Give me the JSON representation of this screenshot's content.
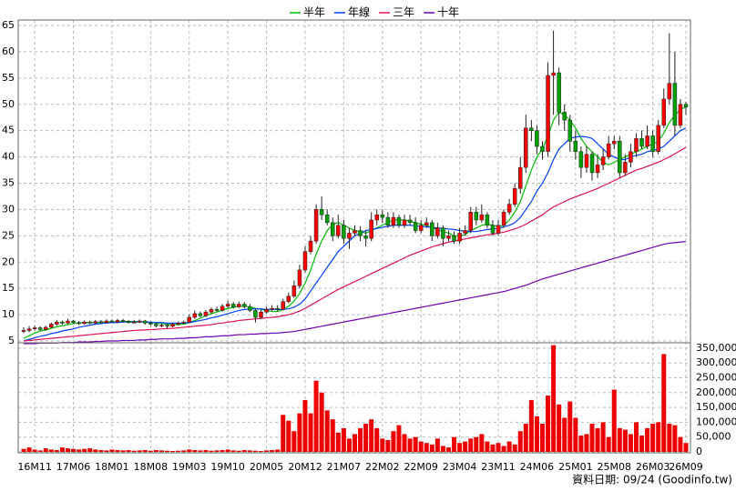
{
  "chart_data": {
    "type": "candlestick",
    "categories": [
      null,
      null,
      "16M11",
      null,
      null,
      null,
      null,
      null,
      null,
      "17M06",
      null,
      null,
      null,
      null,
      null,
      null,
      "18M01",
      null,
      null,
      null,
      null,
      null,
      null,
      "18M08",
      null,
      null,
      null,
      null,
      null,
      null,
      "19M03",
      null,
      null,
      null,
      null,
      null,
      null,
      "19M10",
      null,
      null,
      null,
      null,
      null,
      null,
      "20M05",
      null,
      null,
      null,
      null,
      null,
      null,
      "20M12",
      null,
      null,
      null,
      null,
      null,
      null,
      "21M07",
      null,
      null,
      null,
      null,
      null,
      null,
      "22M02",
      null,
      null,
      null,
      null,
      null,
      null,
      "22M09",
      null,
      null,
      null,
      null,
      null,
      null,
      "23M04",
      null,
      null,
      null,
      null,
      null,
      null,
      "23M11",
      null,
      null,
      null,
      null,
      null,
      null,
      "24M06",
      null,
      null,
      null,
      null,
      null,
      null,
      "25M01",
      null,
      null,
      null,
      null,
      null,
      null,
      "25M08",
      null,
      null,
      null,
      null,
      null,
      null,
      "26M03",
      null,
      null,
      null,
      null,
      null,
      "26M09"
    ],
    "open": [
      6.8,
      7.0,
      7.3,
      7.5,
      7.2,
      7.6,
      8.2,
      8.6,
      8.4,
      8.8,
      8.5,
      8.3,
      8.6,
      8.4,
      8.7,
      8.5,
      8.8,
      8.6,
      8.9,
      8.7,
      8.5,
      8.6,
      8.8,
      8.4,
      8.2,
      7.9,
      8.0,
      7.8,
      8.2,
      8.4,
      8.6,
      9.5,
      10.2,
      9.8,
      10.5,
      11.0,
      10.8,
      11.6,
      12.0,
      11.5,
      12.0,
      11.5,
      10.8,
      9.5,
      10.5,
      11.0,
      11.2,
      11.0,
      12.5,
      13.5,
      15.5,
      18.5,
      22.0,
      24.0,
      30.0,
      29.0,
      27.5,
      25.0,
      27.0,
      24.5,
      25.5,
      26.0,
      25.0,
      24.5,
      28.0,
      29.0,
      28.5,
      27.0,
      28.5,
      27.0,
      28.0,
      27.5,
      26.0,
      27.0,
      27.5,
      25.0,
      26.5,
      24.5,
      25.0,
      24.0,
      25.5,
      26.0,
      29.5,
      28.0,
      29.0,
      27.0,
      25.5,
      27.0,
      29.5,
      31.0,
      34.0,
      38.0,
      45.5,
      45.0,
      42.0,
      41.0,
      55.5,
      56.0,
      48.5,
      47.0,
      43.0,
      41.0,
      38.0,
      40.5,
      37.0,
      38.5,
      40.0,
      42.5,
      43.0,
      37.0,
      39.0,
      41.0,
      43.5,
      42.0,
      44.0,
      41.0,
      46.0,
      51.0,
      54.0,
      46.0,
      50.0
    ],
    "high": [
      7.6,
      7.8,
      7.9,
      7.8,
      7.9,
      8.5,
      9.0,
      8.9,
      9.2,
      9.0,
      8.8,
      8.9,
      8.9,
      9.0,
      9.0,
      9.1,
      9.1,
      9.2,
      9.2,
      9.0,
      9.0,
      9.1,
      9.0,
      8.7,
      8.5,
      8.3,
      8.3,
      8.5,
      8.7,
      8.9,
      10.0,
      10.8,
      10.6,
      10.9,
      11.4,
      11.5,
      12.0,
      12.6,
      12.4,
      12.5,
      12.4,
      12.0,
      11.2,
      10.9,
      11.5,
      11.8,
      11.8,
      13.0,
      14.2,
      16.5,
      19.5,
      23.0,
      25.0,
      31.0,
      32.5,
      30.0,
      28.5,
      29.0,
      28.0,
      26.5,
      27.0,
      26.8,
      26.0,
      29.5,
      30.0,
      30.0,
      29.5,
      29.5,
      29.0,
      29.0,
      29.0,
      28.5,
      28.0,
      28.5,
      28.0,
      27.5,
      27.0,
      26.0,
      25.8,
      26.5,
      27.0,
      30.5,
      30.5,
      31.0,
      29.5,
      28.0,
      28.0,
      30.0,
      32.0,
      35.0,
      40.0,
      48.0,
      47.0,
      46.0,
      43.0,
      58.0,
      64.0,
      57.0,
      50.0,
      48.0,
      45.0,
      42.0,
      42.0,
      41.0,
      40.5,
      41.5,
      44.0,
      44.0,
      44.0,
      40.5,
      42.5,
      44.5,
      45.0,
      46.0,
      45.0,
      47.0,
      53.0,
      63.5,
      60.0,
      51.0,
      50.5
    ],
    "low": [
      6.5,
      6.7,
      7.0,
      6.9,
      7.0,
      7.4,
      7.9,
      8.1,
      8.2,
      8.2,
      8.0,
      8.1,
      8.2,
      8.2,
      8.3,
      8.3,
      8.4,
      8.4,
      8.5,
      8.3,
      8.3,
      8.4,
      8.1,
      7.9,
      7.6,
      7.6,
      7.4,
      7.6,
      8.0,
      8.2,
      8.4,
      9.2,
      9.5,
      9.6,
      10.2,
      10.5,
      10.6,
      11.3,
      11.2,
      11.3,
      11.2,
      10.5,
      8.5,
      9.2,
      10.2,
      10.6,
      10.6,
      10.8,
      12.2,
      13.2,
      15.0,
      18.0,
      21.5,
      23.5,
      28.0,
      27.0,
      24.0,
      24.5,
      23.5,
      22.5,
      25.0,
      24.0,
      23.0,
      24.0,
      27.0,
      27.5,
      26.5,
      26.5,
      26.5,
      26.5,
      27.0,
      25.5,
      25.5,
      26.5,
      24.0,
      24.5,
      23.0,
      24.0,
      23.5,
      23.5,
      25.0,
      25.5,
      27.0,
      27.5,
      26.5,
      25.0,
      25.0,
      26.5,
      29.0,
      30.5,
      33.0,
      37.0,
      43.0,
      40.5,
      39.5,
      40.0,
      48.0,
      46.0,
      45.0,
      41.0,
      39.5,
      36.0,
      37.0,
      35.5,
      36.0,
      37.5,
      39.5,
      41.5,
      36.0,
      36.5,
      38.0,
      40.0,
      41.5,
      41.5,
      40.0,
      40.5,
      45.5,
      50.0,
      44.0,
      45.5,
      48.0
    ],
    "close": [
      7.0,
      7.3,
      7.5,
      7.2,
      7.6,
      8.2,
      8.6,
      8.4,
      8.8,
      8.5,
      8.3,
      8.6,
      8.4,
      8.7,
      8.5,
      8.8,
      8.6,
      8.9,
      8.7,
      8.5,
      8.6,
      8.8,
      8.4,
      8.2,
      7.9,
      8.0,
      7.8,
      8.2,
      8.4,
      8.6,
      9.5,
      10.2,
      9.8,
      10.5,
      11.0,
      10.8,
      11.6,
      12.0,
      11.5,
      12.0,
      11.5,
      10.8,
      9.5,
      10.5,
      11.0,
      11.2,
      11.0,
      12.5,
      13.5,
      15.5,
      18.5,
      22.0,
      24.0,
      30.0,
      29.0,
      27.5,
      25.0,
      27.0,
      24.5,
      25.5,
      26.0,
      25.0,
      24.5,
      28.0,
      29.0,
      28.5,
      27.0,
      28.5,
      27.0,
      28.0,
      27.5,
      26.0,
      27.0,
      27.5,
      25.0,
      26.5,
      24.5,
      25.0,
      24.0,
      25.5,
      26.0,
      29.5,
      28.0,
      29.0,
      27.0,
      25.5,
      27.0,
      29.5,
      31.0,
      34.0,
      38.0,
      45.5,
      45.0,
      42.0,
      41.0,
      55.5,
      56.0,
      48.5,
      47.0,
      43.0,
      41.0,
      38.0,
      40.5,
      37.0,
      38.5,
      40.0,
      42.5,
      43.0,
      37.0,
      39.0,
      41.0,
      43.5,
      42.0,
      44.0,
      41.0,
      46.0,
      51.0,
      54.0,
      46.0,
      50.0,
      49.5
    ],
    "up_color": "#ff0000",
    "down_color": "#00a000",
    "ylim": [
      5,
      65
    ],
    "yticks": [
      5,
      10,
      15,
      20,
      25,
      30,
      35,
      40,
      45,
      50,
      55,
      60,
      65
    ],
    "grid": true,
    "series": [
      {
        "name": "半年",
        "color": "#00c000",
        "values": [
          5.5,
          6.0,
          6.5,
          6.9,
          7.1,
          7.4,
          7.7,
          7.9,
          8.1,
          8.3,
          8.4,
          8.5,
          8.5,
          8.5,
          8.5,
          8.6,
          8.6,
          8.6,
          8.7,
          8.7,
          8.7,
          8.7,
          8.6,
          8.5,
          8.4,
          8.3,
          8.2,
          8.1,
          8.1,
          8.2,
          8.5,
          8.9,
          9.3,
          9.8,
          10.2,
          10.5,
          10.9,
          11.2,
          11.4,
          11.6,
          11.6,
          11.5,
          11.2,
          11.0,
          10.8,
          10.6,
          10.6,
          11.0,
          11.6,
          12.6,
          14.0,
          16.0,
          18.5,
          21.5,
          24.0,
          26.0,
          27.2,
          27.5,
          27.0,
          26.5,
          26.0,
          25.8,
          25.5,
          26.0,
          26.5,
          27.0,
          27.5,
          28.0,
          28.0,
          28.0,
          27.8,
          27.5,
          27.2,
          27.0,
          26.5,
          26.2,
          25.8,
          25.5,
          25.0,
          25.0,
          25.2,
          26.0,
          26.5,
          27.0,
          27.2,
          27.0,
          26.8,
          27.0,
          28.0,
          29.5,
          31.5,
          34.5,
          37.5,
          40.0,
          41.5,
          44.0,
          47.0,
          48.5,
          48.0,
          47.0,
          45.5,
          43.5,
          42.0,
          41.0,
          40.0,
          39.0,
          38.5,
          39.0,
          39.5,
          40.0,
          40.5,
          41.0,
          41.5,
          42.0,
          42.5,
          43.0,
          44.5,
          46.5,
          48.0,
          49.0,
          49.5
        ]
      },
      {
        "name": "年線",
        "color": "#0040ff",
        "values": [
          5.0,
          5.3,
          5.6,
          5.9,
          6.1,
          6.4,
          6.6,
          6.9,
          7.1,
          7.3,
          7.6,
          7.8,
          8.0,
          8.2,
          8.3,
          8.4,
          8.5,
          8.5,
          8.6,
          8.6,
          8.6,
          8.6,
          8.6,
          8.6,
          8.5,
          8.5,
          8.4,
          8.4,
          8.4,
          8.4,
          8.5,
          8.7,
          8.9,
          9.1,
          9.4,
          9.6,
          9.9,
          10.2,
          10.5,
          10.8,
          11.0,
          11.1,
          11.1,
          11.1,
          11.0,
          11.0,
          11.0,
          11.0,
          11.1,
          11.4,
          12.0,
          13.0,
          14.5,
          16.0,
          17.5,
          19.0,
          20.5,
          22.0,
          23.0,
          24.0,
          25.0,
          25.5,
          26.0,
          26.2,
          26.4,
          26.6,
          26.8,
          27.0,
          27.0,
          27.0,
          27.0,
          26.9,
          26.8,
          26.7,
          26.6,
          26.5,
          26.4,
          26.3,
          26.2,
          26.0,
          25.9,
          25.8,
          25.8,
          26.0,
          26.2,
          26.3,
          26.4,
          26.7,
          27.0,
          27.5,
          28.5,
          30.0,
          31.5,
          33.5,
          35.0,
          37.0,
          39.5,
          41.5,
          42.5,
          43.5,
          43.8,
          43.9,
          43.8,
          43.5,
          42.5,
          41.5,
          40.5,
          40.0,
          39.5,
          39.5,
          40.0,
          40.3,
          40.5,
          41.0,
          41.2,
          41.5,
          42.0,
          43.0,
          44.0,
          45.0,
          45.5
        ]
      },
      {
        "name": "三年",
        "color": "#e0105a",
        "values": [
          5.0,
          5.1,
          5.2,
          5.3,
          5.4,
          5.5,
          5.6,
          5.7,
          5.8,
          5.9,
          6.0,
          6.1,
          6.2,
          6.3,
          6.4,
          6.5,
          6.6,
          6.7,
          6.8,
          6.9,
          7.0,
          7.05,
          7.1,
          7.15,
          7.2,
          7.3,
          7.35,
          7.4,
          7.5,
          7.6,
          7.7,
          7.8,
          7.9,
          8.0,
          8.1,
          8.3,
          8.4,
          8.6,
          8.7,
          8.9,
          9.0,
          9.1,
          9.2,
          9.3,
          9.4,
          9.5,
          9.6,
          9.8,
          10.0,
          10.3,
          10.7,
          11.2,
          11.8,
          12.4,
          13.0,
          13.6,
          14.2,
          14.8,
          15.3,
          15.8,
          16.3,
          16.8,
          17.3,
          17.8,
          18.3,
          18.8,
          19.3,
          19.8,
          20.3,
          20.8,
          21.3,
          21.7,
          22.1,
          22.5,
          22.9,
          23.2,
          23.5,
          23.8,
          24.0,
          24.2,
          24.4,
          24.6,
          24.8,
          25.0,
          25.2,
          25.3,
          25.5,
          25.7,
          26.0,
          26.3,
          26.7,
          27.2,
          27.8,
          28.4,
          29.0,
          29.8,
          30.5,
          31.0,
          31.5,
          32.0,
          32.4,
          32.8,
          33.2,
          33.6,
          34.0,
          34.5,
          35.0,
          35.5,
          36.0,
          36.5,
          37.0,
          37.5,
          37.8,
          38.2,
          38.6,
          39.0,
          39.5,
          40.0,
          40.6,
          41.2,
          41.8
        ]
      },
      {
        "name": "十年",
        "color": "#7000b0",
        "values": [
          4.5,
          4.5,
          4.5,
          4.6,
          4.6,
          4.6,
          4.6,
          4.7,
          4.7,
          4.7,
          4.8,
          4.8,
          4.8,
          4.9,
          4.9,
          5.0,
          5.0,
          5.0,
          5.1,
          5.1,
          5.1,
          5.2,
          5.2,
          5.3,
          5.3,
          5.4,
          5.4,
          5.4,
          5.5,
          5.5,
          5.6,
          5.6,
          5.7,
          5.8,
          5.8,
          5.9,
          6.0,
          6.0,
          6.1,
          6.2,
          6.2,
          6.3,
          6.3,
          6.4,
          6.4,
          6.5,
          6.5,
          6.6,
          6.7,
          6.8,
          7.0,
          7.2,
          7.4,
          7.6,
          7.8,
          8.0,
          8.2,
          8.4,
          8.6,
          8.8,
          9.0,
          9.2,
          9.4,
          9.6,
          9.8,
          10.0,
          10.2,
          10.4,
          10.6,
          10.8,
          11.0,
          11.2,
          11.4,
          11.6,
          11.8,
          12.0,
          12.2,
          12.4,
          12.6,
          12.8,
          13.0,
          13.2,
          13.4,
          13.6,
          13.8,
          14.0,
          14.2,
          14.4,
          14.7,
          15.0,
          15.3,
          15.6,
          16.0,
          16.4,
          16.8,
          17.1,
          17.4,
          17.7,
          18.0,
          18.3,
          18.6,
          18.9,
          19.2,
          19.5,
          19.8,
          20.1,
          20.4,
          20.7,
          21.0,
          21.3,
          21.6,
          21.9,
          22.2,
          22.5,
          22.8,
          23.1,
          23.4,
          23.6,
          23.7,
          23.8,
          23.9
        ]
      }
    ],
    "volume": {
      "color": "#ee0000",
      "ylim": [
        0,
        365000
      ],
      "yticks": [
        0,
        {
          "value": 50000,
          "label": "50,000"
        },
        {
          "value": 100000,
          "label": "100,000"
        },
        {
          "value": 150000,
          "label": "150,000"
        },
        {
          "value": 200000,
          "label": "200,000"
        },
        {
          "value": 250000,
          "label": "250,000"
        },
        {
          "value": 300000,
          "label": "300,000"
        },
        {
          "value": 350000,
          "label": "350,000"
        }
      ],
      "values": [
        10000,
        15000,
        8000,
        5000,
        12000,
        8000,
        6000,
        15000,
        12000,
        10000,
        8000,
        10000,
        12000,
        8000,
        6000,
        5000,
        8000,
        6000,
        5000,
        6000,
        4000,
        5000,
        6000,
        4000,
        6000,
        5000,
        4000,
        3000,
        4000,
        5000,
        8000,
        6000,
        5000,
        6000,
        4000,
        5000,
        6000,
        8000,
        5000,
        4000,
        6000,
        5000,
        4000,
        3000,
        5000,
        6000,
        8000,
        125000,
        105000,
        70000,
        130000,
        175000,
        130000,
        240000,
        200000,
        140000,
        110000,
        65000,
        80000,
        45000,
        60000,
        80000,
        95000,
        110000,
        80000,
        45000,
        40000,
        70000,
        90000,
        60000,
        45000,
        50000,
        35000,
        30000,
        25000,
        45000,
        20000,
        15000,
        50000,
        30000,
        35000,
        45000,
        50000,
        60000,
        35000,
        25000,
        30000,
        20000,
        35000,
        25000,
        70000,
        95000,
        175000,
        120000,
        95000,
        190000,
        360000,
        160000,
        115000,
        170000,
        115000,
        55000,
        60000,
        95000,
        80000,
        100000,
        50000,
        210000,
        80000,
        75000,
        60000,
        100000,
        55000,
        80000,
        95000,
        100000,
        330000,
        95000,
        90000,
        50000,
        30000
      ]
    },
    "annotation": "資料日期: 09/24 (Goodinfo.tw)"
  }
}
